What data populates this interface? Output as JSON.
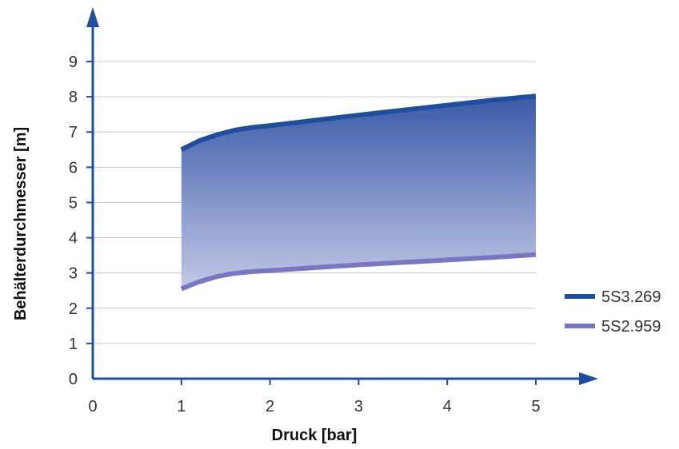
{
  "chart_data": {
    "type": "area",
    "title": "",
    "xlabel": "Druck [bar]",
    "ylabel": "Behälterdurchmesser [m]",
    "xlim": [
      0,
      5
    ],
    "ylim": [
      0,
      9
    ],
    "x_ticks": [
      "0",
      "1",
      "2",
      "3",
      "4",
      "5"
    ],
    "y_ticks": [
      "0",
      "1",
      "2",
      "3",
      "4",
      "5",
      "6",
      "7",
      "8",
      "9"
    ],
    "grid": true,
    "legend_position": "right",
    "series": [
      {
        "name": "5S3.269",
        "color": "#1f4e9c",
        "x": [
          1.0,
          1.2,
          1.4,
          1.6,
          1.8,
          2.0,
          2.5,
          3.0,
          3.5,
          4.0,
          4.5,
          5.0
        ],
        "y": [
          6.5,
          6.75,
          6.92,
          7.05,
          7.13,
          7.18,
          7.33,
          7.48,
          7.62,
          7.76,
          7.9,
          8.02
        ]
      },
      {
        "name": "5S2.959",
        "color": "#7878c0",
        "x": [
          1.0,
          1.2,
          1.4,
          1.6,
          1.8,
          2.0,
          2.5,
          3.0,
          3.5,
          4.0,
          4.5,
          5.0
        ],
        "y": [
          2.55,
          2.75,
          2.9,
          2.99,
          3.04,
          3.07,
          3.15,
          3.23,
          3.3,
          3.37,
          3.44,
          3.52
        ]
      }
    ],
    "fill_between": {
      "top_color": "#3a5aa8",
      "bottom_color": "#c2c8e6"
    },
    "axis_color": "#1f4e9c",
    "grid_color": "#c8c8c8"
  }
}
